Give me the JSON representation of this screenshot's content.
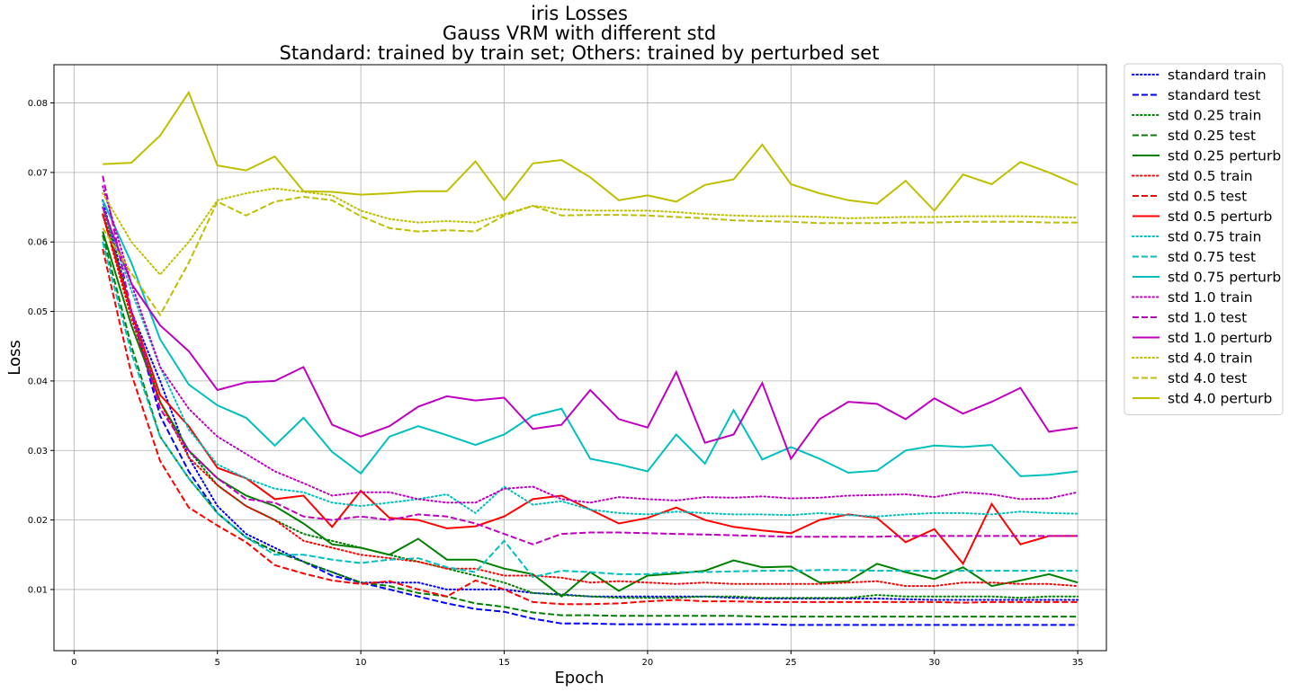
{
  "chart_data": {
    "type": "line",
    "title": [
      "iris Losses",
      "Gauss VRM with different std",
      "Standard: trained by train set; Others: trained by perturbed set"
    ],
    "xlabel": "Epoch",
    "ylabel": "Loss",
    "xlim": [
      -0.7,
      36.0
    ],
    "ylim": [
      0.0012,
      0.0855
    ],
    "xticks": [
      0,
      5,
      10,
      15,
      20,
      25,
      30,
      35
    ],
    "yticks": [
      0.01,
      0.02,
      0.03,
      0.04,
      0.05,
      0.06,
      0.07,
      0.08
    ],
    "ytick_labels": [
      "0.01",
      "0.02",
      "0.03",
      "0.04",
      "0.05",
      "0.06",
      "0.07",
      "0.08"
    ],
    "grid": true,
    "legend_position": "outside-right",
    "x": [
      1,
      2,
      3,
      4,
      5,
      6,
      7,
      8,
      9,
      10,
      11,
      12,
      13,
      14,
      15,
      16,
      17,
      18,
      19,
      20,
      21,
      22,
      23,
      24,
      25,
      26,
      27,
      28,
      29,
      30,
      31,
      32,
      33,
      34,
      35
    ],
    "series": [
      {
        "name": "standard train",
        "color": "#0000ff",
        "dash": "dotted",
        "values": [
          0.066,
          0.05,
          0.04,
          0.029,
          0.022,
          0.018,
          0.016,
          0.014,
          0.0125,
          0.011,
          0.011,
          0.011,
          0.01,
          0.01,
          0.01,
          0.0095,
          0.0093,
          0.009,
          0.009,
          0.009,
          0.009,
          0.009,
          0.0088,
          0.0087,
          0.0087,
          0.0087,
          0.0087,
          0.0087,
          0.0086,
          0.0085,
          0.0085,
          0.0085,
          0.0085,
          0.0085,
          0.0085
        ]
      },
      {
        "name": "standard test",
        "color": "#0000ff",
        "dash": "dashed",
        "values": [
          0.064,
          0.05,
          0.035,
          0.027,
          0.021,
          0.0175,
          0.0155,
          0.014,
          0.012,
          0.011,
          0.01,
          0.009,
          0.008,
          0.0072,
          0.0068,
          0.0058,
          0.0051,
          0.0051,
          0.005,
          0.005,
          0.005,
          0.005,
          0.005,
          0.005,
          0.0049,
          0.0049,
          0.0049,
          0.0049,
          0.0049,
          0.0049,
          0.0049,
          0.0049,
          0.0049,
          0.0049,
          0.0049
        ]
      },
      {
        "name": "std 0.25 train",
        "color": "#008000",
        "dash": "dotted",
        "values": [
          0.065,
          0.05,
          0.037,
          0.03,
          0.025,
          0.022,
          0.02,
          0.018,
          0.017,
          0.016,
          0.015,
          0.014,
          0.013,
          0.012,
          0.011,
          0.0095,
          0.0092,
          0.009,
          0.0088,
          0.0088,
          0.0088,
          0.009,
          0.009,
          0.0088,
          0.0088,
          0.0088,
          0.0088,
          0.0092,
          0.009,
          0.009,
          0.009,
          0.009,
          0.0088,
          0.009,
          0.009
        ]
      },
      {
        "name": "std 0.25 test",
        "color": "#008000",
        "dash": "dashed",
        "values": [
          0.061,
          0.045,
          0.032,
          0.026,
          0.021,
          0.0175,
          0.0155,
          0.014,
          0.0125,
          0.011,
          0.0105,
          0.0095,
          0.009,
          0.008,
          0.0075,
          0.0067,
          0.0063,
          0.0063,
          0.0062,
          0.0062,
          0.0062,
          0.0062,
          0.0062,
          0.0061,
          0.0061,
          0.0061,
          0.0061,
          0.0061,
          0.0061,
          0.0061,
          0.0061,
          0.0061,
          0.0061,
          0.0061,
          0.0061
        ]
      },
      {
        "name": "std 0.25 perturb",
        "color": "#008000",
        "dash": "solid",
        "values": [
          0.0615,
          0.048,
          0.037,
          0.03,
          0.026,
          0.0235,
          0.022,
          0.0195,
          0.0165,
          0.016,
          0.015,
          0.0173,
          0.0143,
          0.0143,
          0.013,
          0.0122,
          0.009,
          0.0125,
          0.0098,
          0.012,
          0.0123,
          0.0127,
          0.0142,
          0.0132,
          0.0133,
          0.011,
          0.0112,
          0.0137,
          0.0125,
          0.0115,
          0.0132,
          0.0105,
          0.0113,
          0.0122,
          0.011
        ]
      },
      {
        "name": "std 0.5 train",
        "color": "#ff0000",
        "dash": "dotted",
        "values": [
          0.064,
          0.049,
          0.037,
          0.029,
          0.025,
          0.022,
          0.02,
          0.017,
          0.016,
          0.015,
          0.0145,
          0.014,
          0.013,
          0.013,
          0.012,
          0.012,
          0.0117,
          0.011,
          0.0112,
          0.011,
          0.0108,
          0.011,
          0.0108,
          0.0108,
          0.0108,
          0.0108,
          0.011,
          0.0112,
          0.0105,
          0.0105,
          0.011,
          0.011,
          0.0108,
          0.0108,
          0.0105
        ]
      },
      {
        "name": "std 0.5 test",
        "color": "#ff0000",
        "dash": "dashed",
        "values": [
          0.059,
          0.041,
          0.0285,
          0.0218,
          0.0192,
          0.0168,
          0.0135,
          0.0123,
          0.0113,
          0.0108,
          0.0112,
          0.01,
          0.009,
          0.0113,
          0.01,
          0.0082,
          0.0079,
          0.0079,
          0.008,
          0.0083,
          0.0085,
          0.0083,
          0.0083,
          0.0082,
          0.0082,
          0.0082,
          0.0082,
          0.0082,
          0.0082,
          0.0082,
          0.0081,
          0.0082,
          0.0082,
          0.0082,
          0.0082
        ]
      },
      {
        "name": "std 0.5 perturb",
        "color": "#ff0000",
        "dash": "solid",
        "values": [
          0.064,
          0.05,
          0.038,
          0.0335,
          0.0275,
          0.026,
          0.023,
          0.0235,
          0.019,
          0.0242,
          0.0203,
          0.02,
          0.0188,
          0.0191,
          0.0205,
          0.023,
          0.0235,
          0.0215,
          0.0195,
          0.0203,
          0.0218,
          0.02,
          0.019,
          0.0185,
          0.0181,
          0.02,
          0.0208,
          0.0203,
          0.0168,
          0.0187,
          0.0137,
          0.0223,
          0.0165,
          0.0177,
          0.0177
        ]
      },
      {
        "name": "std 0.75 train",
        "color": "#00bfbf",
        "dash": "dotted",
        "values": [
          0.065,
          0.053,
          0.042,
          0.033,
          0.028,
          0.026,
          0.0245,
          0.024,
          0.0225,
          0.022,
          0.0225,
          0.023,
          0.0237,
          0.021,
          0.0248,
          0.0222,
          0.0227,
          0.0215,
          0.021,
          0.0208,
          0.0212,
          0.021,
          0.0208,
          0.0208,
          0.0207,
          0.021,
          0.0207,
          0.0205,
          0.0208,
          0.021,
          0.021,
          0.0208,
          0.0212,
          0.021,
          0.0209
        ]
      },
      {
        "name": "std 0.75 test",
        "color": "#00bfbf",
        "dash": "dashed",
        "values": [
          0.06,
          0.044,
          0.032,
          0.026,
          0.021,
          0.0175,
          0.015,
          0.015,
          0.0143,
          0.0138,
          0.0143,
          0.0145,
          0.0132,
          0.0125,
          0.017,
          0.0118,
          0.0127,
          0.0125,
          0.0122,
          0.0122,
          0.0125,
          0.0125,
          0.0126,
          0.0127,
          0.0127,
          0.0128,
          0.0128,
          0.0127,
          0.0127,
          0.0127,
          0.0127,
          0.0127,
          0.0127,
          0.0127,
          0.0127
        ]
      },
      {
        "name": "std 0.75 perturb",
        "color": "#00bfbf",
        "dash": "solid",
        "values": [
          0.066,
          0.057,
          0.046,
          0.0395,
          0.0365,
          0.0347,
          0.0307,
          0.0347,
          0.0298,
          0.0267,
          0.032,
          0.0335,
          0.0322,
          0.0308,
          0.0323,
          0.035,
          0.036,
          0.0288,
          0.028,
          0.027,
          0.0323,
          0.0281,
          0.0358,
          0.0287,
          0.0305,
          0.0288,
          0.0268,
          0.0271,
          0.03,
          0.0307,
          0.0305,
          0.0308,
          0.0263,
          0.0265,
          0.027
        ]
      },
      {
        "name": "std 1.0 train",
        "color": "#bf00bf",
        "dash": "dotted",
        "values": [
          0.068,
          0.054,
          0.042,
          0.036,
          0.032,
          0.0295,
          0.027,
          0.0253,
          0.0235,
          0.024,
          0.024,
          0.023,
          0.0225,
          0.0225,
          0.0245,
          0.0248,
          0.023,
          0.0225,
          0.0233,
          0.023,
          0.0228,
          0.0233,
          0.0232,
          0.0234,
          0.0231,
          0.0232,
          0.0235,
          0.0236,
          0.0237,
          0.0233,
          0.024,
          0.0237,
          0.023,
          0.0231,
          0.024
        ]
      },
      {
        "name": "std 1.0 test",
        "color": "#bf00bf",
        "dash": "dashed",
        "values": [
          0.0695,
          0.05,
          0.036,
          0.03,
          0.026,
          0.023,
          0.0225,
          0.0205,
          0.02,
          0.0205,
          0.02,
          0.0208,
          0.0205,
          0.0195,
          0.018,
          0.0165,
          0.018,
          0.0182,
          0.0182,
          0.0181,
          0.018,
          0.0179,
          0.0178,
          0.0177,
          0.0176,
          0.0176,
          0.0176,
          0.0176,
          0.0177,
          0.0177,
          0.0177,
          0.0177,
          0.0177,
          0.0177,
          0.0177
        ]
      },
      {
        "name": "std 1.0 perturb",
        "color": "#bf00bf",
        "dash": "solid",
        "values": [
          0.065,
          0.054,
          0.048,
          0.0443,
          0.0387,
          0.0398,
          0.04,
          0.042,
          0.0337,
          0.032,
          0.0335,
          0.0363,
          0.0378,
          0.0372,
          0.0376,
          0.0331,
          0.0337,
          0.0387,
          0.0345,
          0.0333,
          0.0413,
          0.0311,
          0.0323,
          0.0397,
          0.0288,
          0.0345,
          0.037,
          0.0367,
          0.0345,
          0.0375,
          0.0353,
          0.037,
          0.039,
          0.0327,
          0.0333
        ]
      },
      {
        "name": "std 4.0 train",
        "color": "#bfbf00",
        "dash": "dotted",
        "values": [
          0.067,
          0.06,
          0.0553,
          0.06,
          0.066,
          0.067,
          0.0677,
          0.0672,
          0.0667,
          0.0645,
          0.0633,
          0.0628,
          0.063,
          0.0628,
          0.064,
          0.0652,
          0.0647,
          0.0645,
          0.0645,
          0.0645,
          0.0643,
          0.064,
          0.0638,
          0.0637,
          0.0637,
          0.0636,
          0.0634,
          0.0635,
          0.0636,
          0.0636,
          0.0637,
          0.0637,
          0.0637,
          0.0636,
          0.0635
        ]
      },
      {
        "name": "std 4.0 test",
        "color": "#bfbf00",
        "dash": "dashed",
        "values": [
          0.062,
          0.0555,
          0.0495,
          0.057,
          0.0658,
          0.0638,
          0.0658,
          0.0665,
          0.066,
          0.0637,
          0.062,
          0.0615,
          0.0617,
          0.0615,
          0.0638,
          0.0652,
          0.0638,
          0.0639,
          0.0639,
          0.0638,
          0.0636,
          0.0634,
          0.0631,
          0.063,
          0.0629,
          0.0627,
          0.0627,
          0.0627,
          0.0628,
          0.0628,
          0.0629,
          0.0629,
          0.0629,
          0.0628,
          0.0628
        ]
      },
      {
        "name": "std 4.0 perturb",
        "color": "#bfbf00",
        "dash": "solid",
        "values": [
          0.0712,
          0.0714,
          0.0753,
          0.0815,
          0.071,
          0.0703,
          0.0723,
          0.0673,
          0.0672,
          0.0668,
          0.067,
          0.0673,
          0.0673,
          0.0716,
          0.066,
          0.0713,
          0.0718,
          0.0693,
          0.066,
          0.0667,
          0.0658,
          0.0682,
          0.069,
          0.074,
          0.0683,
          0.067,
          0.066,
          0.0655,
          0.0688,
          0.0645,
          0.0697,
          0.0683,
          0.0715,
          0.07,
          0.0682
        ]
      }
    ]
  }
}
